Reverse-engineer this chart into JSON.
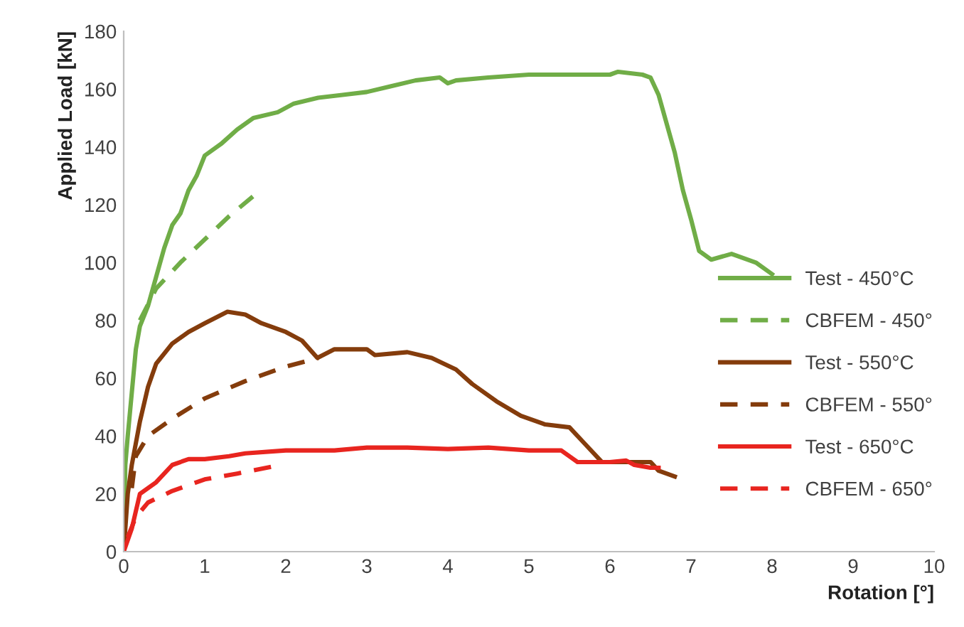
{
  "chart_data": {
    "type": "line",
    "xlabel": "Rotation [°]",
    "ylabel": "Applied Load [kN]",
    "xlim": [
      0,
      10
    ],
    "xticks": [
      0,
      1,
      2,
      3,
      4,
      5,
      6,
      7,
      8,
      9,
      10
    ],
    "ylim": [
      0,
      180
    ],
    "yticks": [
      0,
      20,
      40,
      60,
      80,
      100,
      120,
      140,
      160,
      180
    ],
    "grid": false,
    "legend": "right",
    "series": [
      {
        "name": "Test - 450°C",
        "color": "#70ad47",
        "line_style": "solid",
        "x": [
          0,
          0.02,
          0.05,
          0.1,
          0.15,
          0.2,
          0.3,
          0.4,
          0.5,
          0.6,
          0.7,
          0.8,
          0.9,
          1.0,
          1.2,
          1.4,
          1.6,
          1.9,
          2.1,
          2.4,
          2.7,
          3.0,
          3.3,
          3.6,
          3.9,
          4.0,
          4.1,
          4.5,
          5.0,
          5.5,
          6.0,
          6.1,
          6.4,
          6.5,
          6.6,
          6.7,
          6.8,
          6.9,
          7.0,
          7.1,
          7.25,
          7.5,
          7.8,
          8.0
        ],
        "values": [
          0,
          30,
          40,
          55,
          70,
          78,
          85,
          95,
          105,
          113,
          117,
          125,
          130,
          137,
          141,
          146,
          150,
          152,
          155,
          157,
          158,
          159,
          161,
          163,
          164,
          162,
          163,
          164,
          165,
          165,
          165,
          166,
          165,
          164,
          158,
          148,
          138,
          125,
          115,
          104,
          101,
          103,
          100,
          96
        ]
      },
      {
        "name": "CBFEM - 450°",
        "color": "#70ad47",
        "line_style": "dashed",
        "x": [
          0.2,
          0.4,
          0.7,
          1.0,
          1.3,
          1.6
        ],
        "values": [
          80,
          91,
          100,
          108,
          116,
          123
        ]
      },
      {
        "name": "Test - 550°C",
        "color": "#843c0c",
        "line_style": "solid",
        "x": [
          0,
          0.05,
          0.1,
          0.2,
          0.3,
          0.4,
          0.6,
          0.8,
          1.0,
          1.28,
          1.5,
          1.7,
          2.0,
          2.2,
          2.39,
          2.6,
          3.0,
          3.1,
          3.5,
          3.8,
          4.1,
          4.3,
          4.6,
          4.9,
          5.2,
          5.5,
          5.7,
          5.9,
          6.1,
          6.5,
          6.6,
          6.8
        ],
        "values": [
          0,
          20,
          30,
          45,
          57,
          65,
          72,
          76,
          79,
          83,
          82,
          79,
          76,
          73,
          67,
          70,
          70,
          68,
          69,
          67,
          63,
          58,
          52,
          47,
          44,
          43,
          37,
          31,
          31,
          31,
          28,
          26
        ]
      },
      {
        "name": "CBFEM - 550°",
        "color": "#843c0c",
        "line_style": "dashed",
        "x": [
          0.1,
          0.15,
          0.3,
          0.6,
          1.0,
          1.5,
          2.0,
          2.4
        ],
        "values": [
          22,
          33,
          40,
          46,
          53,
          59,
          64,
          67
        ]
      },
      {
        "name": "Test - 650°C",
        "color": "#e8251f",
        "line_style": "solid",
        "x": [
          0,
          0.1,
          0.2,
          0.4,
          0.6,
          0.8,
          1.0,
          1.3,
          1.5,
          2.0,
          2.6,
          3.0,
          3.5,
          4.0,
          4.5,
          5.0,
          5.4,
          5.6,
          6.0,
          6.2,
          6.3,
          6.5,
          6.6
        ],
        "values": [
          0,
          8,
          20,
          24,
          30,
          32,
          32,
          33,
          34,
          35,
          35,
          36,
          36,
          35.5,
          36,
          35,
          35,
          31,
          31,
          31.5,
          30,
          29,
          29
        ]
      },
      {
        "name": "CBFEM - 650°",
        "color": "#e8251f",
        "line_style": "dashed",
        "x": [
          0.05,
          0.15,
          0.3,
          0.6,
          1.0,
          1.4,
          1.85
        ],
        "values": [
          5,
          12,
          17,
          21,
          25,
          27,
          29.5
        ]
      }
    ]
  }
}
